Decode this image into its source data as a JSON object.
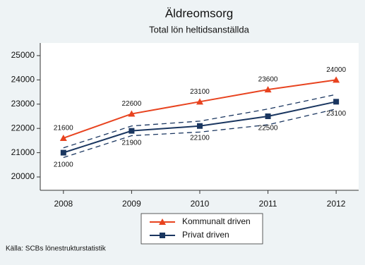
{
  "chart_data": {
    "type": "line",
    "title": "Äldreomsorg",
    "subtitle": "Total lön heltidsanställda",
    "source": "Källa: SCBs lönestrukturstatistik",
    "x": [
      2008,
      2009,
      2010,
      2011,
      2012
    ],
    "xlim": [
      2007.66,
      2012.33
    ],
    "xticks": [
      2008,
      2009,
      2010,
      2011,
      2012
    ],
    "ylim": [
      19450,
      25520
    ],
    "yticks": [
      20000,
      21000,
      22000,
      23000,
      24000,
      25000
    ],
    "series": [
      {
        "name": "Kommunalt driven",
        "color": "#e8431f",
        "marker": "triangle",
        "label_side": "above",
        "values": [
          21600,
          22600,
          23100,
          23600,
          24000
        ]
      },
      {
        "name": "Privat driven",
        "color": "#1a3660",
        "marker": "square",
        "label_side": "below",
        "values": [
          21000,
          21900,
          22100,
          22500,
          23100
        ],
        "ci_upper": [
          21200,
          22100,
          22300,
          22800,
          23400
        ],
        "ci_lower": [
          20800,
          21700,
          21850,
          22150,
          22800
        ]
      }
    ]
  }
}
